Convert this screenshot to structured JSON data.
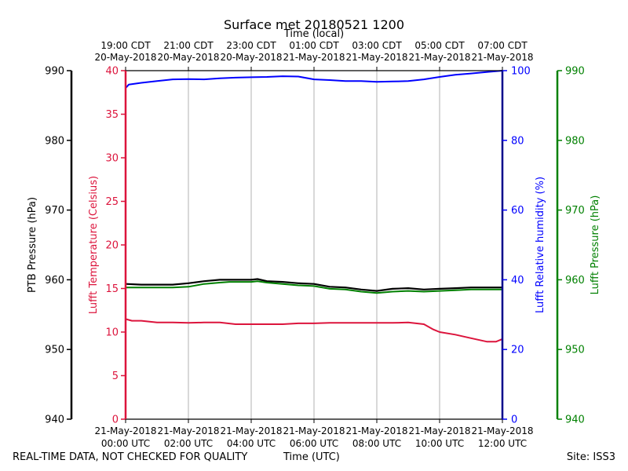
{
  "chart_data": {
    "type": "line",
    "title": "Surface met 20180521 1200",
    "top_axis_label": "Time (local)",
    "bottom_axis_label": "Time (UTC)",
    "top_ticks": [
      {
        "hour": 0,
        "l1": "19:00 CDT",
        "l2": "20-May-2018"
      },
      {
        "hour": 2,
        "l1": "21:00 CDT",
        "l2": "20-May-2018"
      },
      {
        "hour": 4,
        "l1": "23:00 CDT",
        "l2": "20-May-2018"
      },
      {
        "hour": 6,
        "l1": "01:00 CDT",
        "l2": "21-May-2018"
      },
      {
        "hour": 8,
        "l1": "03:00 CDT",
        "l2": "21-May-2018"
      },
      {
        "hour": 10,
        "l1": "05:00 CDT",
        "l2": "21-May-2018"
      },
      {
        "hour": 12,
        "l1": "07:00 CDT",
        "l2": "21-May-2018"
      }
    ],
    "bottom_ticks": [
      {
        "hour": 0,
        "l1": "21-May-2018",
        "l2": "00:00 UTC"
      },
      {
        "hour": 2,
        "l1": "21-May-2018",
        "l2": "02:00 UTC"
      },
      {
        "hour": 4,
        "l1": "21-May-2018",
        "l2": "04:00 UTC"
      },
      {
        "hour": 6,
        "l1": "21-May-2018",
        "l2": "06:00 UTC"
      },
      {
        "hour": 8,
        "l1": "21-May-2018",
        "l2": "08:00 UTC"
      },
      {
        "hour": 10,
        "l1": "21-May-2018",
        "l2": "10:00 UTC"
      },
      {
        "hour": 12,
        "l1": "21-May-2018",
        "l2": "12:00 UTC"
      }
    ],
    "xlim": [
      0,
      12
    ],
    "grid": true,
    "axes": {
      "ptb": {
        "label": "PTB Pressure (hPa)",
        "range": [
          940,
          990
        ],
        "ticks": [
          940,
          950,
          960,
          970,
          980,
          990
        ],
        "color": "#000000"
      },
      "temp": {
        "label": "Lufft Temperature (Celsius)",
        "range": [
          0,
          40
        ],
        "ticks": [
          0,
          5,
          10,
          15,
          20,
          25,
          30,
          35,
          40
        ],
        "color": "#dc143c"
      },
      "rh": {
        "label": "Lufft Relative humidity (%)",
        "range": [
          0,
          100
        ],
        "ticks": [
          0,
          20,
          40,
          60,
          80,
          100
        ],
        "color": "#0000ff"
      },
      "lp": {
        "label": "Lufft Pressure (hPa)",
        "range": [
          940,
          990
        ],
        "ticks": [
          940,
          950,
          960,
          970,
          980,
          990
        ],
        "color": "#008000"
      }
    },
    "series": [
      {
        "name": "Lufft Relative humidity",
        "axis": "rh",
        "color": "#0000ff",
        "x": [
          0,
          0.1,
          0.5,
          1.0,
          1.5,
          2.0,
          2.5,
          3.0,
          3.5,
          4.0,
          4.5,
          5.0,
          5.5,
          6.0,
          6.5,
          7.0,
          7.5,
          8.0,
          8.5,
          9.0,
          9.5,
          10.0,
          10.5,
          11.0,
          11.5,
          12.0
        ],
        "values": [
          95.0,
          96.0,
          96.5,
          97.0,
          97.5,
          97.6,
          97.5,
          97.8,
          98.0,
          98.1,
          98.2,
          98.4,
          98.3,
          97.5,
          97.3,
          97.0,
          97.0,
          96.8,
          96.9,
          97.0,
          97.5,
          98.2,
          98.8,
          99.2,
          99.6,
          100.0
        ]
      },
      {
        "name": "Lufft Temperature",
        "axis": "temp",
        "color": "#dc143c",
        "x": [
          0,
          0.2,
          0.5,
          1.0,
          1.5,
          2.0,
          2.5,
          3.0,
          3.5,
          4.0,
          4.5,
          5.0,
          5.5,
          6.0,
          6.5,
          7.0,
          7.5,
          8.0,
          8.5,
          9.0,
          9.5,
          9.8,
          10.0,
          10.5,
          11.0,
          11.5,
          11.8,
          12.0
        ],
        "values": [
          11.5,
          11.3,
          11.3,
          11.1,
          11.1,
          11.05,
          11.1,
          11.1,
          10.9,
          10.9,
          10.9,
          10.9,
          11.0,
          11.0,
          11.05,
          11.05,
          11.05,
          11.05,
          11.05,
          11.1,
          10.9,
          10.3,
          10.0,
          9.7,
          9.3,
          8.9,
          8.9,
          9.2
        ]
      },
      {
        "name": "PTB Pressure",
        "axis": "ptb",
        "color": "#000000",
        "x": [
          0,
          0.5,
          1.0,
          1.5,
          2.0,
          2.5,
          3.0,
          3.3,
          3.5,
          4.0,
          4.2,
          4.5,
          5.0,
          5.5,
          6.0,
          6.5,
          7.0,
          7.5,
          8.0,
          8.5,
          9.0,
          9.5,
          10.0,
          10.5,
          11.0,
          11.5,
          12.0
        ],
        "values": [
          959.4,
          959.3,
          959.3,
          959.3,
          959.5,
          959.8,
          960.0,
          960.0,
          960.0,
          960.0,
          960.1,
          959.8,
          959.7,
          959.5,
          959.4,
          959.0,
          958.9,
          958.6,
          958.4,
          958.7,
          958.8,
          958.6,
          958.7,
          958.8,
          958.9,
          958.9,
          958.9
        ]
      },
      {
        "name": "Lufft Pressure",
        "axis": "lp",
        "color": "#008000",
        "x": [
          0,
          0.5,
          1.0,
          1.5,
          2.0,
          2.5,
          3.0,
          3.3,
          3.5,
          4.0,
          4.2,
          4.5,
          5.0,
          5.5,
          6.0,
          6.5,
          7.0,
          7.5,
          8.0,
          8.5,
          9.0,
          9.5,
          10.0,
          10.5,
          11.0,
          11.5,
          12.0
        ],
        "values": [
          958.9,
          958.9,
          958.9,
          958.9,
          959.0,
          959.4,
          959.6,
          959.7,
          959.7,
          959.7,
          959.8,
          959.6,
          959.4,
          959.2,
          959.1,
          958.7,
          958.6,
          958.3,
          958.1,
          958.3,
          958.4,
          958.3,
          958.4,
          958.5,
          958.6,
          958.6,
          958.6
        ]
      }
    ]
  },
  "footer": {
    "left": "REAL-TIME DATA, NOT CHECKED FOR QUALITY",
    "center": "Time (UTC)",
    "right": "Site: ISS3"
  }
}
